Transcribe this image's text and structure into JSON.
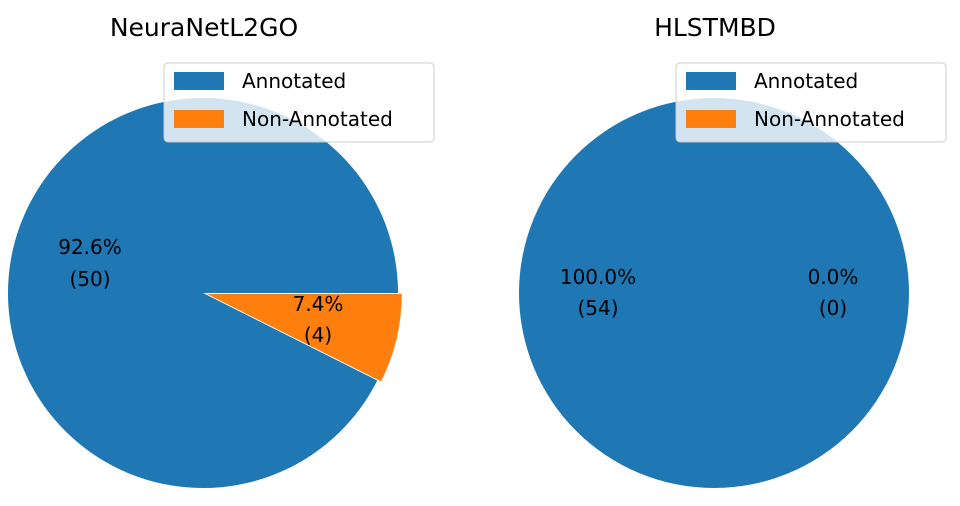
{
  "chart_data": [
    {
      "type": "pie",
      "title": "NeuraNetL2GO",
      "labels": [
        "Annotated",
        "Non-Annotated"
      ],
      "values": [
        50,
        4
      ],
      "percent_labels": [
        {
          "pct": "92.6%",
          "count": "(50)"
        },
        {
          "pct": "7.4%",
          "count": "(4)"
        }
      ],
      "colors": [
        "#1f77b4",
        "#ff7f0e"
      ],
      "explode": [
        0,
        0.02
      ],
      "legend": {
        "position": "top-right",
        "entries": [
          "Annotated",
          "Non-Annotated"
        ]
      }
    },
    {
      "type": "pie",
      "title": "HLSTMBD",
      "labels": [
        "Annotated",
        "Non-Annotated"
      ],
      "values": [
        54,
        0
      ],
      "percent_labels": [
        {
          "pct": "100.0%",
          "count": "(54)"
        },
        {
          "pct": "0.0%",
          "count": "(0)"
        }
      ],
      "colors": [
        "#1f77b4",
        "#ff7f0e"
      ],
      "explode": [
        0,
        0.02
      ],
      "legend": {
        "position": "top-right",
        "entries": [
          "Annotated",
          "Non-Annotated"
        ]
      }
    }
  ]
}
